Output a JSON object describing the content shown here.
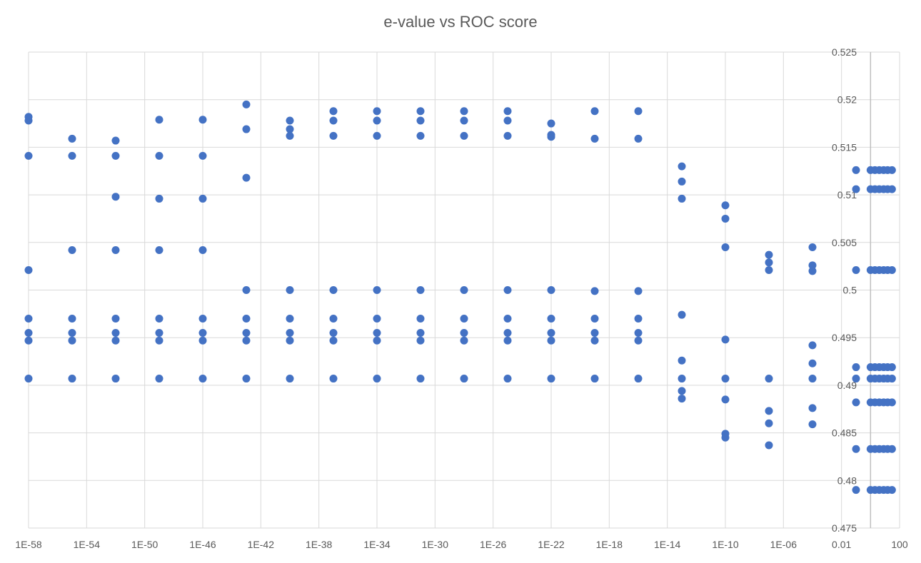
{
  "chart_data": {
    "type": "scatter",
    "title": "e-value vs ROC score",
    "x_scale": "log10",
    "xlim": [
      "1E-58",
      "100"
    ],
    "ylim": [
      0.475,
      0.525
    ],
    "grid": true,
    "legend": "none",
    "marker_color": "#4472C4",
    "x_ticks": [
      "1E-58",
      "1E-54",
      "1E-50",
      "1E-46",
      "1E-42",
      "1E-38",
      "1E-34",
      "1E-30",
      "1E-26",
      "1E-22",
      "1E-18",
      "1E-14",
      "1E-10",
      "1E-06",
      "0.01",
      "100"
    ],
    "y_ticks": [
      "0.475",
      "0.48",
      "0.485",
      "0.49",
      "0.495",
      "0.5",
      "0.505",
      "0.51",
      "0.515",
      "0.52",
      "0.525"
    ],
    "series": [
      {
        "x": "1E-58",
        "y": [
          0.5182,
          0.5178,
          0.5141,
          0.5021,
          0.497,
          0.4955,
          0.4947,
          0.4907
        ]
      },
      {
        "x": "1E-55",
        "y": [
          0.5159,
          0.5141,
          0.5042,
          0.497,
          0.4955,
          0.4947,
          0.4907
        ]
      },
      {
        "x": "1E-52",
        "y": [
          0.5157,
          0.5141,
          0.5098,
          0.5042,
          0.497,
          0.4955,
          0.4947,
          0.4907
        ]
      },
      {
        "x": "1E-49",
        "y": [
          0.5179,
          0.5141,
          0.5096,
          0.5042,
          0.497,
          0.4955,
          0.4947,
          0.4907
        ]
      },
      {
        "x": "1E-46",
        "y": [
          0.5179,
          0.5141,
          0.5096,
          0.5042,
          0.497,
          0.4955,
          0.4947,
          0.4907
        ]
      },
      {
        "x": "1E-43",
        "y": [
          0.5195,
          0.5169,
          0.5118,
          0.5,
          0.497,
          0.4955,
          0.4947,
          0.4907
        ]
      },
      {
        "x": "1E-40",
        "y": [
          0.5178,
          0.5169,
          0.5162,
          0.5,
          0.497,
          0.4955,
          0.4947,
          0.4907
        ]
      },
      {
        "x": "1E-37",
        "y": [
          0.5188,
          0.5178,
          0.5162,
          0.5,
          0.497,
          0.4955,
          0.4947,
          0.4907
        ]
      },
      {
        "x": "1E-34",
        "y": [
          0.5188,
          0.5178,
          0.5162,
          0.5,
          0.497,
          0.4955,
          0.4947,
          0.4907
        ]
      },
      {
        "x": "1E-31",
        "y": [
          0.5188,
          0.5178,
          0.5162,
          0.5,
          0.497,
          0.4955,
          0.4947,
          0.4907
        ]
      },
      {
        "x": "1E-28",
        "y": [
          0.5188,
          0.5178,
          0.5162,
          0.5,
          0.497,
          0.4955,
          0.4947,
          0.4907
        ]
      },
      {
        "x": "1E-25",
        "y": [
          0.5188,
          0.5178,
          0.5162,
          0.5,
          0.497,
          0.4955,
          0.4947,
          0.4907
        ]
      },
      {
        "x": "1E-22",
        "y": [
          0.5175,
          0.5163,
          0.5161,
          0.5,
          0.497,
          0.4955,
          0.4947,
          0.4907
        ]
      },
      {
        "x": "1E-19",
        "y": [
          0.5188,
          0.5159,
          0.4999,
          0.497,
          0.4955,
          0.4947,
          0.4907
        ]
      },
      {
        "x": "1E-16",
        "y": [
          0.5188,
          0.5159,
          0.4999,
          0.497,
          0.4955,
          0.4947,
          0.4907
        ]
      },
      {
        "x": "1E-13",
        "y": [
          0.513,
          0.5114,
          0.5096,
          0.4974,
          0.4926,
          0.4907,
          0.4894,
          0.4886
        ]
      },
      {
        "x": "1E-10",
        "y": [
          0.5089,
          0.5075,
          0.5045,
          0.4948,
          0.4907,
          0.4885,
          0.4849,
          0.4845
        ]
      },
      {
        "x": "1E-07",
        "y": [
          0.5037,
          0.5029,
          0.5021,
          0.4907,
          0.4873,
          0.486,
          0.4837
        ]
      },
      {
        "x": "1E-04",
        "y": [
          0.5045,
          0.5026,
          0.502,
          0.4942,
          0.4923,
          0.4907,
          0.4876,
          0.4859
        ]
      },
      {
        "x": "0.1",
        "y": [
          0.5126,
          0.5106,
          0.5021,
          0.4919,
          0.4907,
          0.4882,
          0.4833,
          0.479
        ]
      },
      {
        "x": "1",
        "y": [
          0.5126,
          0.5106,
          0.5021,
          0.4919,
          0.4907,
          0.4882,
          0.4833,
          0.479
        ]
      },
      {
        "x": "2",
        "y": [
          0.5126,
          0.5106,
          0.5021,
          0.4919,
          0.4907,
          0.4882,
          0.4833,
          0.479
        ]
      },
      {
        "x": "4",
        "y": [
          0.5126,
          0.5106,
          0.5021,
          0.4919,
          0.4907,
          0.4882,
          0.4833,
          0.479
        ]
      },
      {
        "x": "8",
        "y": [
          0.5126,
          0.5106,
          0.5021,
          0.4919,
          0.4907,
          0.4882,
          0.4833,
          0.479
        ]
      },
      {
        "x": "15",
        "y": [
          0.5126,
          0.5106,
          0.5021,
          0.4919,
          0.4907,
          0.4882,
          0.4833,
          0.479
        ]
      },
      {
        "x": "30",
        "y": [
          0.5126,
          0.5106,
          0.5021,
          0.4919,
          0.4907,
          0.4882,
          0.4833,
          0.479
        ]
      }
    ]
  }
}
